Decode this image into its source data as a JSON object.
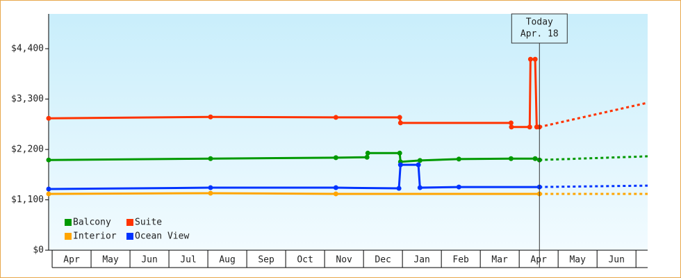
{
  "chart_data": {
    "type": "line",
    "xlim": [
      -0.09,
      15.3
    ],
    "ylim": [
      0,
      5160
    ],
    "yticks": [
      {
        "value": 0,
        "label": "$0"
      },
      {
        "value": 1100,
        "label": "$1,100"
      },
      {
        "value": 2200,
        "label": "$2,200"
      },
      {
        "value": 3300,
        "label": "$3,300"
      },
      {
        "value": 4400,
        "label": "$4,400"
      }
    ],
    "xticks": [
      {
        "value": 0.5,
        "label": "Apr"
      },
      {
        "value": 1.5,
        "label": "May"
      },
      {
        "value": 2.5,
        "label": "Jun"
      },
      {
        "value": 3.5,
        "label": "Jul"
      },
      {
        "value": 4.5,
        "label": "Aug"
      },
      {
        "value": 5.5,
        "label": "Sep"
      },
      {
        "value": 6.5,
        "label": "Oct"
      },
      {
        "value": 7.5,
        "label": "Nov"
      },
      {
        "value": 8.5,
        "label": "Dec"
      },
      {
        "value": 9.5,
        "label": "Jan"
      },
      {
        "value": 10.5,
        "label": "Feb"
      },
      {
        "value": 11.5,
        "label": "Mar"
      },
      {
        "value": 12.5,
        "label": "Apr"
      },
      {
        "value": 13.5,
        "label": "May"
      },
      {
        "value": 14.5,
        "label": "Jun"
      }
    ],
    "today": {
      "x": 12.52,
      "text": [
        "Today",
        "Apr. 18"
      ]
    },
    "legend": "lower left",
    "series": [
      {
        "name": "Balcony",
        "color": "#009900",
        "x": [
          -0.09,
          4.07,
          7.29,
          8.09,
          8.11,
          8.93,
          8.95,
          9.45,
          10.45,
          11.79,
          12.41,
          12.52,
          15.3
        ],
        "values": [
          1970,
          2000,
          2020,
          2030,
          2120,
          2120,
          1930,
          1960,
          1990,
          2000,
          2000,
          1970,
          2050
        ]
      },
      {
        "name": "Suite",
        "color": "#ff3300",
        "x": [
          -0.09,
          4.07,
          7.29,
          8.93,
          8.95,
          11.79,
          11.8,
          12.27,
          12.29,
          12.41,
          12.45,
          12.52,
          15.3
        ],
        "values": [
          2880,
          2910,
          2900,
          2900,
          2780,
          2780,
          2690,
          2690,
          4170,
          4170,
          2690,
          2690,
          3220
        ]
      },
      {
        "name": "Interior",
        "color": "#ffa500",
        "x": [
          -0.09,
          4.07,
          7.29,
          12.52,
          15.3
        ],
        "values": [
          1230,
          1245,
          1230,
          1230,
          1230
        ]
      },
      {
        "name": "Ocean View",
        "color": "#0033ff",
        "x": [
          -0.09,
          4.07,
          7.29,
          8.91,
          8.95,
          9.41,
          9.45,
          10.45,
          12.52,
          15.3
        ],
        "values": [
          1335,
          1365,
          1365,
          1350,
          1865,
          1865,
          1365,
          1380,
          1380,
          1410
        ]
      }
    ]
  }
}
